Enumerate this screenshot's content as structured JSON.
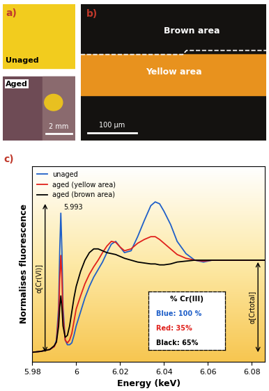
{
  "panel_a": {
    "label": "a)",
    "top_text": "Unaged",
    "bottom_text": "Aged",
    "scale_bar": "2 mm"
  },
  "panel_b": {
    "label": "b)",
    "top_text": "Brown area",
    "band_text": "Yellow area",
    "scale_bar": "100 µm"
  },
  "chart_data": {
    "type": "line",
    "label": "c)",
    "x_label": "Energy (keV)",
    "y_label": "Normalises fluorescence",
    "x": [
      5.98,
      5.984,
      5.988,
      5.99,
      5.991,
      5.992,
      5.9925,
      5.993,
      5.9935,
      5.994,
      5.995,
      5.996,
      5.997,
      5.998,
      5.999,
      6.0,
      6.002,
      6.004,
      6.006,
      6.008,
      6.01,
      6.012,
      6.014,
      6.016,
      6.018,
      6.02,
      6.022,
      6.025,
      6.028,
      6.031,
      6.034,
      6.036,
      6.038,
      6.04,
      6.043,
      6.046,
      6.05,
      6.054,
      6.058,
      6.062,
      6.066,
      6.07,
      6.075,
      6.08,
      6.086
    ],
    "series": [
      {
        "name": "unaged",
        "color": "#1f5fc8",
        "values": [
          0.02,
          0.03,
          0.05,
          0.08,
          0.15,
          0.5,
          1.1,
          1.5,
          1.1,
          0.5,
          0.15,
          0.1,
          0.1,
          0.12,
          0.2,
          0.3,
          0.45,
          0.6,
          0.72,
          0.82,
          0.9,
          0.98,
          1.08,
          1.17,
          1.2,
          1.14,
          1.08,
          1.1,
          1.25,
          1.42,
          1.58,
          1.62,
          1.6,
          1.52,
          1.38,
          1.2,
          1.07,
          1.0,
          0.98,
          1.0,
          1.0,
          1.0,
          1.0,
          1.0,
          1.0
        ]
      },
      {
        "name": "aged (yellow area)",
        "color": "#e0201b",
        "values": [
          0.02,
          0.03,
          0.05,
          0.08,
          0.13,
          0.4,
          0.8,
          1.05,
          0.8,
          0.4,
          0.15,
          0.12,
          0.15,
          0.22,
          0.35,
          0.48,
          0.62,
          0.75,
          0.85,
          0.93,
          1.0,
          1.08,
          1.15,
          1.2,
          1.19,
          1.14,
          1.1,
          1.12,
          1.18,
          1.22,
          1.25,
          1.25,
          1.22,
          1.18,
          1.12,
          1.06,
          1.02,
          1.0,
          0.99,
          1.0,
          1.0,
          1.0,
          1.0,
          1.0,
          1.0
        ]
      },
      {
        "name": "aged (brown area)",
        "color": "#000000",
        "values": [
          0.02,
          0.03,
          0.05,
          0.09,
          0.13,
          0.3,
          0.5,
          0.62,
          0.5,
          0.3,
          0.18,
          0.2,
          0.3,
          0.45,
          0.6,
          0.72,
          0.88,
          1.0,
          1.08,
          1.12,
          1.12,
          1.1,
          1.08,
          1.07,
          1.06,
          1.04,
          1.02,
          1.0,
          0.98,
          0.97,
          0.96,
          0.96,
          0.95,
          0.95,
          0.96,
          0.98,
          0.99,
          1.0,
          1.0,
          1.0,
          1.0,
          1.0,
          1.0,
          1.0,
          1.0
        ]
      }
    ],
    "xlim": [
      5.98,
      6.086
    ],
    "xticks": [
      5.98,
      6,
      6.02,
      6.04,
      6.06,
      6.08
    ],
    "ylim": [
      -0.08,
      2.0
    ],
    "yticks": [],
    "tick_labels": "x",
    "legend": "upper left",
    "peak_label": {
      "value": 5.993,
      "label": "5.993"
    },
    "alpha_vi": "α[Cr(VI)]",
    "alpha_total": "α[Crtotal]",
    "inset": {
      "title": "% Cr(III)",
      "entries": [
        {
          "text": "Blue: 100 %",
          "color": "#1f5fc8"
        },
        {
          "text": "Red: 35%",
          "color": "#e0201b"
        },
        {
          "text": "Black: 65%",
          "color": "#000000"
        }
      ]
    }
  }
}
